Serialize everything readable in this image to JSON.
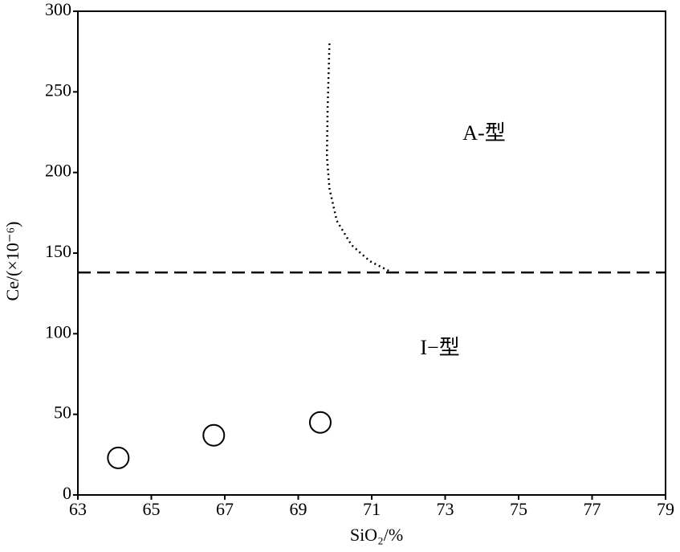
{
  "chart_data": {
    "type": "scatter",
    "xlabel": "SiO₂/%",
    "ylabel": "Ce/(×10⁻⁶)",
    "x": [
      64.1,
      66.7,
      69.6
    ],
    "y": [
      23,
      37,
      45
    ],
    "xlim": [
      63,
      79
    ],
    "ylim": [
      0,
      300
    ],
    "xticks": [
      63,
      65,
      67,
      69,
      71,
      73,
      75,
      77,
      79
    ],
    "yticks": [
      0,
      50,
      100,
      150,
      200,
      250,
      300
    ],
    "threshold": 138,
    "boundary": {
      "x": [
        69.85,
        69.8,
        69.78,
        69.85,
        70.05,
        70.45,
        70.95,
        71.55
      ],
      "y": [
        280,
        240,
        210,
        190,
        170,
        155,
        145,
        138
      ]
    },
    "annotations": [
      "A-型",
      "I−型"
    ]
  }
}
